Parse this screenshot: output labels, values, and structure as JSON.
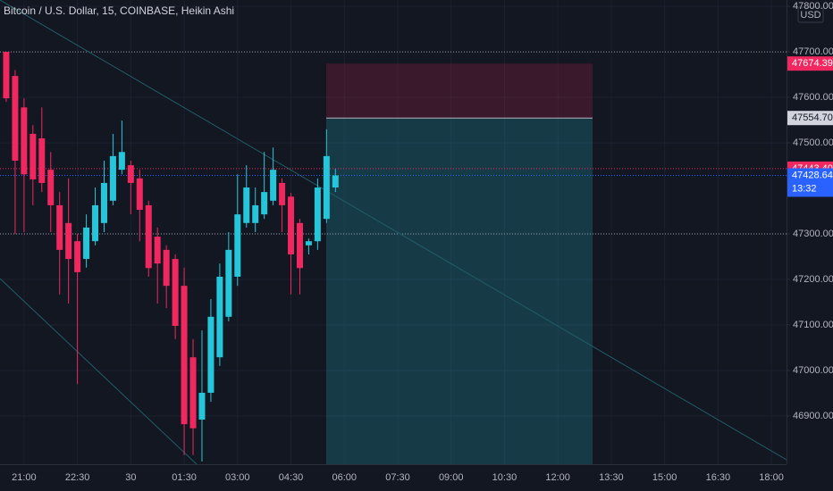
{
  "chart_data": {
    "type": "candlestick",
    "title": "Bitcoin / U.S. Dollar, 15, COINBASE, Heikin Ashi",
    "currency": "USD",
    "up_color": "#26c6da",
    "down_color": "#f0285f",
    "open": [
      47700,
      47647,
      47578,
      47520,
      47510,
      47441,
      47363,
      47324,
      47284,
      47245,
      47284,
      47324,
      47373,
      47441,
      47451,
      47422,
      47363,
      47294,
      47265,
      47245,
      47186,
      47029,
      46892,
      46951,
      47029,
      47118,
      47206,
      47324,
      47324,
      47343,
      47373,
      47412,
      47382,
      47324,
      47275,
      47284,
      47333,
      47402
    ],
    "high": [
      47700,
      47660,
      47598,
      47539,
      47578,
      47480,
      47392,
      47422,
      47300,
      47343,
      47402,
      47461,
      47520,
      47549,
      47461,
      47441,
      47373,
      47314,
      47275,
      47255,
      47226,
      47069,
      47088,
      47157,
      47235,
      47304,
      47431,
      47451,
      47402,
      47480,
      47490,
      47422,
      47390,
      47333,
      47290,
      47422,
      47530,
      47443
    ],
    "low": [
      47590,
      47300,
      47304,
      47363,
      47392,
      47304,
      47167,
      47147,
      46970,
      47226,
      47275,
      47304,
      47363,
      47431,
      47343,
      47284,
      47206,
      47147,
      47137,
      47069,
      46814,
      46814,
      46800,
      46931,
      47010,
      47108,
      47186,
      47314,
      47304,
      47333,
      47363,
      47304,
      47167,
      47167,
      47255,
      47265,
      47324,
      47392
    ],
    "close": [
      47598,
      47461,
      47431,
      47420,
      47412,
      47363,
      47265,
      47245,
      47216,
      47314,
      47363,
      47412,
      47471,
      47480,
      47412,
      47353,
      47225,
      47235,
      47186,
      47098,
      46882,
      46873,
      46951,
      47118,
      47206,
      47265,
      47343,
      47402,
      47363,
      47392,
      47441,
      47363,
      47255,
      47225,
      47284,
      47402,
      47471,
      47428.64
    ],
    "xlim": [
      -0.7,
      87.7
    ],
    "xticks": [
      {
        "value": 2,
        "label": "21:00"
      },
      {
        "value": 8,
        "label": "22:30"
      },
      {
        "value": 14,
        "label": "30"
      },
      {
        "value": 20,
        "label": "01:30"
      },
      {
        "value": 26,
        "label": "03:00"
      },
      {
        "value": 32,
        "label": "04:30"
      },
      {
        "value": 38,
        "label": "06:00"
      },
      {
        "value": 44,
        "label": "07:30"
      },
      {
        "value": 50,
        "label": "09:00"
      },
      {
        "value": 56,
        "label": "10:30"
      },
      {
        "value": 62,
        "label": "12:00"
      },
      {
        "value": 68,
        "label": "13:30"
      },
      {
        "value": 74,
        "label": "15:00"
      },
      {
        "value": 80,
        "label": "16:30"
      },
      {
        "value": 86,
        "label": "18:00"
      }
    ],
    "ylim": [
      46794,
      47814
    ],
    "yticks": [
      {
        "value": 46900,
        "label": "46900.00"
      },
      {
        "value": 47000,
        "label": "47000.00"
      },
      {
        "value": 47100,
        "label": "47100.00"
      },
      {
        "value": 47200,
        "label": "47200.00"
      },
      {
        "value": 47300,
        "label": "47300.00"
      },
      {
        "value": 47500,
        "label": "47500.00"
      },
      {
        "value": 47600,
        "label": "47600.00"
      },
      {
        "value": 47700,
        "label": "47700.00"
      },
      {
        "value": 47800,
        "label": "47800.00"
      }
    ],
    "hlines": [
      47700,
      47300
    ],
    "position": {
      "stop": {
        "value": 47674.39,
        "label": "47674.39"
      },
      "entry": {
        "value": 47554.7,
        "label": "47554.70"
      }
    },
    "alert": {
      "value": 47443.4,
      "label": "47443.40",
      "color": "#f0285f"
    },
    "last_price": {
      "value": 47428.64,
      "label": "47428.64",
      "countdown": "13:32",
      "color": "#2962ff"
    }
  }
}
